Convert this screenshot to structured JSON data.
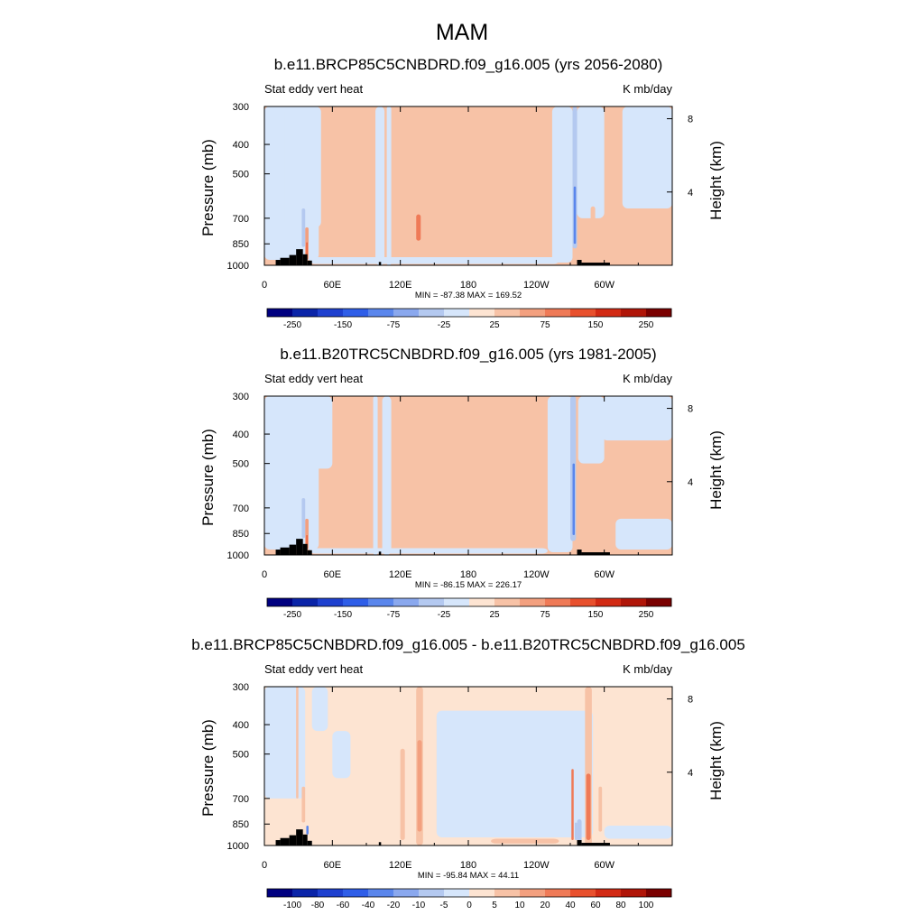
{
  "figure": {
    "title": "MAM"
  },
  "palettes": {
    "abs": [
      "#000080",
      "#0a24a8",
      "#1e40cf",
      "#2f5ee8",
      "#5a86ec",
      "#8aa8ee",
      "#b4c9f0",
      "#d6e6fb",
      "#fde4d2",
      "#f7c2a6",
      "#f3a07f",
      "#ef7a57",
      "#e8502d",
      "#d22a14",
      "#b01508",
      "#7a0000"
    ],
    "diff": [
      "#000080",
      "#0a24a8",
      "#1e40cf",
      "#2f5ee8",
      "#5a86ec",
      "#8aa8ee",
      "#b4c9f0",
      "#d6e6fb",
      "#fde4d2",
      "#f7c2a6",
      "#f3a07f",
      "#ef7a57",
      "#e8502d",
      "#d22a14",
      "#b01508",
      "#7a0000"
    ]
  },
  "chart_data": [
    {
      "type": "heatmap",
      "title": "b.e11.BRCP85C5CNBDRD.f09_g16.005 (yrs 2056-2080)",
      "left_label": "Stat eddy vert heat",
      "right_label": "K mb/day",
      "ylabel": "Pressure (mb)",
      "ylabel_right": "Height (km)",
      "x_ticks": [
        "0",
        "60E",
        "120E",
        "180",
        "120W",
        "60W"
      ],
      "x_tick_lon": [
        0,
        60,
        120,
        180,
        240,
        300
      ],
      "xlim": [
        0,
        360
      ],
      "y_ticks": [
        "300",
        "400",
        "500",
        "700",
        "850",
        "1000"
      ],
      "y_tick_values": [
        300,
        400,
        500,
        700,
        850,
        1000
      ],
      "ylim": [
        1000,
        300
      ],
      "y_scale": "log",
      "right_ticks": [
        "8",
        "4"
      ],
      "right_tick_values": [
        8,
        4
      ],
      "stats": "MIN = -87.38  MAX = 169.52",
      "min": -87.38,
      "max": 169.52,
      "colorbar": {
        "palette": "abs",
        "labels": [
          "-250",
          "-150",
          "-75",
          "-25",
          "25",
          "75",
          "150",
          "250"
        ]
      },
      "field": {
        "background_level": 25,
        "regions": [
          {
            "lon": [
              0,
              48
            ],
            "p": [
              300,
              960
            ],
            "value": -10
          },
          {
            "lon": [
              18,
              50
            ],
            "p": [
              300,
              750
            ],
            "value": -10
          },
          {
            "lon": [
              98,
              106
            ],
            "p": [
              300,
              1000
            ],
            "value": -10
          },
          {
            "lon": [
              108,
              112
            ],
            "p": [
              300,
              1000
            ],
            "value": -10
          },
          {
            "lon": [
              254,
              272
            ],
            "p": [
              300,
              980
            ],
            "value": -10
          },
          {
            "lon": [
              276,
              300
            ],
            "p": [
              300,
              700
            ],
            "value": -10
          },
          {
            "lon": [
              316,
              360
            ],
            "p": [
              300,
              650
            ],
            "value": -10
          },
          {
            "lon": [
              40,
              260
            ],
            "p": [
              940,
              990
            ],
            "value": -10
          },
          {
            "lon": [
              272,
              276
            ],
            "p": [
              300,
              880
            ],
            "value": -40
          },
          {
            "lon": [
              273,
              275
            ],
            "p": [
              550,
              850
            ],
            "value": -80
          },
          {
            "lon": [
              132,
              140
            ],
            "p": [
              620,
              870
            ],
            "value": 40
          },
          {
            "lon": [
              134,
              138
            ],
            "p": [
              680,
              830
            ],
            "value": 80
          },
          {
            "lon": [
              36,
              39
            ],
            "p": [
              750,
              960
            ],
            "value": 60
          },
          {
            "lon": [
              37,
              38
            ],
            "p": [
              840,
              960
            ],
            "value": 120
          },
          {
            "lon": [
              33,
              36
            ],
            "p": [
              650,
              870
            ],
            "value": -40
          },
          {
            "lon": [
              288,
              292
            ],
            "p": [
              640,
              880
            ],
            "value": 40
          }
        ]
      },
      "topography": [
        {
          "lon": [
            10,
            14
          ],
          "p": 960
        },
        {
          "lon": [
            14,
            22
          ],
          "p": 945
        },
        {
          "lon": [
            22,
            28
          ],
          "p": 925
        },
        {
          "lon": [
            28,
            34
          ],
          "p": 885
        },
        {
          "lon": [
            34,
            38
          ],
          "p": 920
        },
        {
          "lon": [
            38,
            42
          ],
          "p": 965
        },
        {
          "lon": [
            101,
            103
          ],
          "p": 975
        },
        {
          "lon": [
            276,
            280
          ],
          "p": 960
        },
        {
          "lon": [
            280,
            305
          ],
          "p": 980
        }
      ]
    },
    {
      "type": "heatmap",
      "title": "b.e11.B20TRC5CNBDRD.f09_g16.005 (yrs 1981-2005)",
      "left_label": "Stat eddy vert heat",
      "right_label": "K mb/day",
      "ylabel": "Pressure (mb)",
      "ylabel_right": "Height (km)",
      "x_ticks": [
        "0",
        "60E",
        "120E",
        "180",
        "120W",
        "60W"
      ],
      "x_tick_lon": [
        0,
        60,
        120,
        180,
        240,
        300
      ],
      "xlim": [
        0,
        360
      ],
      "y_ticks": [
        "300",
        "400",
        "500",
        "700",
        "850",
        "1000"
      ],
      "y_tick_values": [
        300,
        400,
        500,
        700,
        850,
        1000
      ],
      "ylim": [
        1000,
        300
      ],
      "y_scale": "log",
      "right_ticks": [
        "8",
        "4"
      ],
      "right_tick_values": [
        8,
        4
      ],
      "stats": "MIN = -86.15  MAX = 226.17",
      "min": -86.15,
      "max": 226.17,
      "colorbar": {
        "palette": "abs",
        "labels": [
          "-250",
          "-150",
          "-75",
          "-25",
          "25",
          "75",
          "150",
          "250"
        ]
      },
      "field": {
        "background_level": 25,
        "regions": [
          {
            "lon": [
              0,
              48
            ],
            "p": [
              300,
              960
            ],
            "value": -10
          },
          {
            "lon": [
              20,
              60
            ],
            "p": [
              300,
              520
            ],
            "value": -10
          },
          {
            "lon": [
              96,
              100
            ],
            "p": [
              300,
              1000
            ],
            "value": -10
          },
          {
            "lon": [
              104,
              112
            ],
            "p": [
              300,
              1000
            ],
            "value": -10
          },
          {
            "lon": [
              250,
              272
            ],
            "p": [
              300,
              980
            ],
            "value": -10
          },
          {
            "lon": [
              277,
              300
            ],
            "p": [
              300,
              500
            ],
            "value": -10
          },
          {
            "lon": [
              298,
              360
            ],
            "p": [
              300,
              420
            ],
            "value": -10
          },
          {
            "lon": [
              310,
              360
            ],
            "p": [
              760,
              960
            ],
            "value": -10
          },
          {
            "lon": [
              40,
              250
            ],
            "p": [
              950,
              990
            ],
            "value": -10
          },
          {
            "lon": [
              270,
              275
            ],
            "p": [
              300,
              900
            ],
            "value": -40
          },
          {
            "lon": [
              272,
              274
            ],
            "p": [
              500,
              860
            ],
            "value": -80
          },
          {
            "lon": [
              135,
              139
            ],
            "p": [
              760,
              880
            ],
            "value": 40
          },
          {
            "lon": [
              36,
              39
            ],
            "p": [
              760,
              960
            ],
            "value": 60
          },
          {
            "lon": [
              37,
              38
            ],
            "p": [
              860,
              960
            ],
            "value": 120
          },
          {
            "lon": [
              33,
              36
            ],
            "p": [
              650,
              880
            ],
            "value": -40
          },
          {
            "lon": [
              279,
              283
            ],
            "p": [
              700,
              930
            ],
            "value": 40
          }
        ]
      },
      "topography": [
        {
          "lon": [
            10,
            14
          ],
          "p": 960
        },
        {
          "lon": [
            14,
            22
          ],
          "p": 945
        },
        {
          "lon": [
            22,
            28
          ],
          "p": 925
        },
        {
          "lon": [
            28,
            34
          ],
          "p": 885
        },
        {
          "lon": [
            34,
            38
          ],
          "p": 920
        },
        {
          "lon": [
            38,
            42
          ],
          "p": 965
        },
        {
          "lon": [
            101,
            103
          ],
          "p": 975
        },
        {
          "lon": [
            276,
            280
          ],
          "p": 960
        },
        {
          "lon": [
            280,
            305
          ],
          "p": 980
        }
      ]
    },
    {
      "type": "heatmap",
      "title": "b.e11.BRCP85C5CNBDRD.f09_g16.005 - b.e11.B20TRC5CNBDRD.f09_g16.005",
      "left_label": "Stat eddy vert heat",
      "right_label": "K mb/day",
      "ylabel": "Pressure (mb)",
      "ylabel_right": "Height (km)",
      "x_ticks": [
        "0",
        "60E",
        "120E",
        "180",
        "120W",
        "60W"
      ],
      "x_tick_lon": [
        0,
        60,
        120,
        180,
        240,
        300
      ],
      "xlim": [
        0,
        360
      ],
      "y_ticks": [
        "300",
        "400",
        "500",
        "700",
        "850",
        "1000"
      ],
      "y_tick_values": [
        300,
        400,
        500,
        700,
        850,
        1000
      ],
      "ylim": [
        1000,
        300
      ],
      "y_scale": "log",
      "right_ticks": [
        "8",
        "4"
      ],
      "right_tick_values": [
        8,
        4
      ],
      "stats": "MIN = -95.84  MAX =  44.11",
      "min": -95.84,
      "max": 44.11,
      "colorbar": {
        "palette": "diff",
        "labels": [
          "-100",
          "-80",
          "-60",
          "-40",
          "-20",
          "-10",
          "-5",
          "0",
          "5",
          "10",
          "20",
          "40",
          "60",
          "80",
          "100"
        ]
      },
      "field": {
        "background_level": 2,
        "regions": [
          {
            "lon": [
              152,
              290
            ],
            "p": [
              360,
              940
            ],
            "value": -2
          },
          {
            "lon": [
              0,
              36
            ],
            "p": [
              300,
              700
            ],
            "value": -2
          },
          {
            "lon": [
              42,
              56
            ],
            "p": [
              300,
              420
            ],
            "value": -2
          },
          {
            "lon": [
              300,
              360
            ],
            "p": [
              860,
              950
            ],
            "value": -2
          },
          {
            "lon": [
              60,
              76
            ],
            "p": [
              420,
              600
            ],
            "value": -2
          },
          {
            "lon": [
              134,
              140
            ],
            "p": [
              300,
              1000
            ],
            "value": 7
          },
          {
            "lon": [
              135,
              139
            ],
            "p": [
              450,
              900
            ],
            "value": 12
          },
          {
            "lon": [
              120,
              124
            ],
            "p": [
              480,
              960
            ],
            "value": 7
          },
          {
            "lon": [
              28,
              30
            ],
            "p": [
              300,
              700
            ],
            "value": 7
          },
          {
            "lon": [
              33,
              36
            ],
            "p": [
              640,
              840
            ],
            "value": 7
          },
          {
            "lon": [
              200,
              260
            ],
            "p": [
              950,
              985
            ],
            "value": 7
          },
          {
            "lon": [
              283,
              289
            ],
            "p": [
              300,
              1000
            ],
            "value": 7
          },
          {
            "lon": [
              284,
              288
            ],
            "p": [
              580,
              960
            ],
            "value": 25
          },
          {
            "lon": [
              271,
              273
            ],
            "p": [
              560,
              960
            ],
            "value": 25
          },
          {
            "lon": [
              295,
              298
            ],
            "p": [
              640,
              900
            ],
            "value": 7
          },
          {
            "lon": [
              276,
              280
            ],
            "p": [
              820,
              980
            ],
            "value": -7
          },
          {
            "lon": [
              37,
              39
            ],
            "p": [
              860,
              920
            ],
            "value": -25
          },
          {
            "lon": [
              274,
              276
            ],
            "p": [
              840,
              960
            ],
            "value": -7
          }
        ]
      },
      "topography": [
        {
          "lon": [
            10,
            14
          ],
          "p": 960
        },
        {
          "lon": [
            14,
            22
          ],
          "p": 945
        },
        {
          "lon": [
            22,
            28
          ],
          "p": 925
        },
        {
          "lon": [
            28,
            34
          ],
          "p": 885
        },
        {
          "lon": [
            34,
            38
          ],
          "p": 920
        },
        {
          "lon": [
            38,
            42
          ],
          "p": 965
        },
        {
          "lon": [
            101,
            103
          ],
          "p": 975
        },
        {
          "lon": [
            276,
            280
          ],
          "p": 960
        },
        {
          "lon": [
            280,
            305
          ],
          "p": 980
        }
      ]
    }
  ]
}
